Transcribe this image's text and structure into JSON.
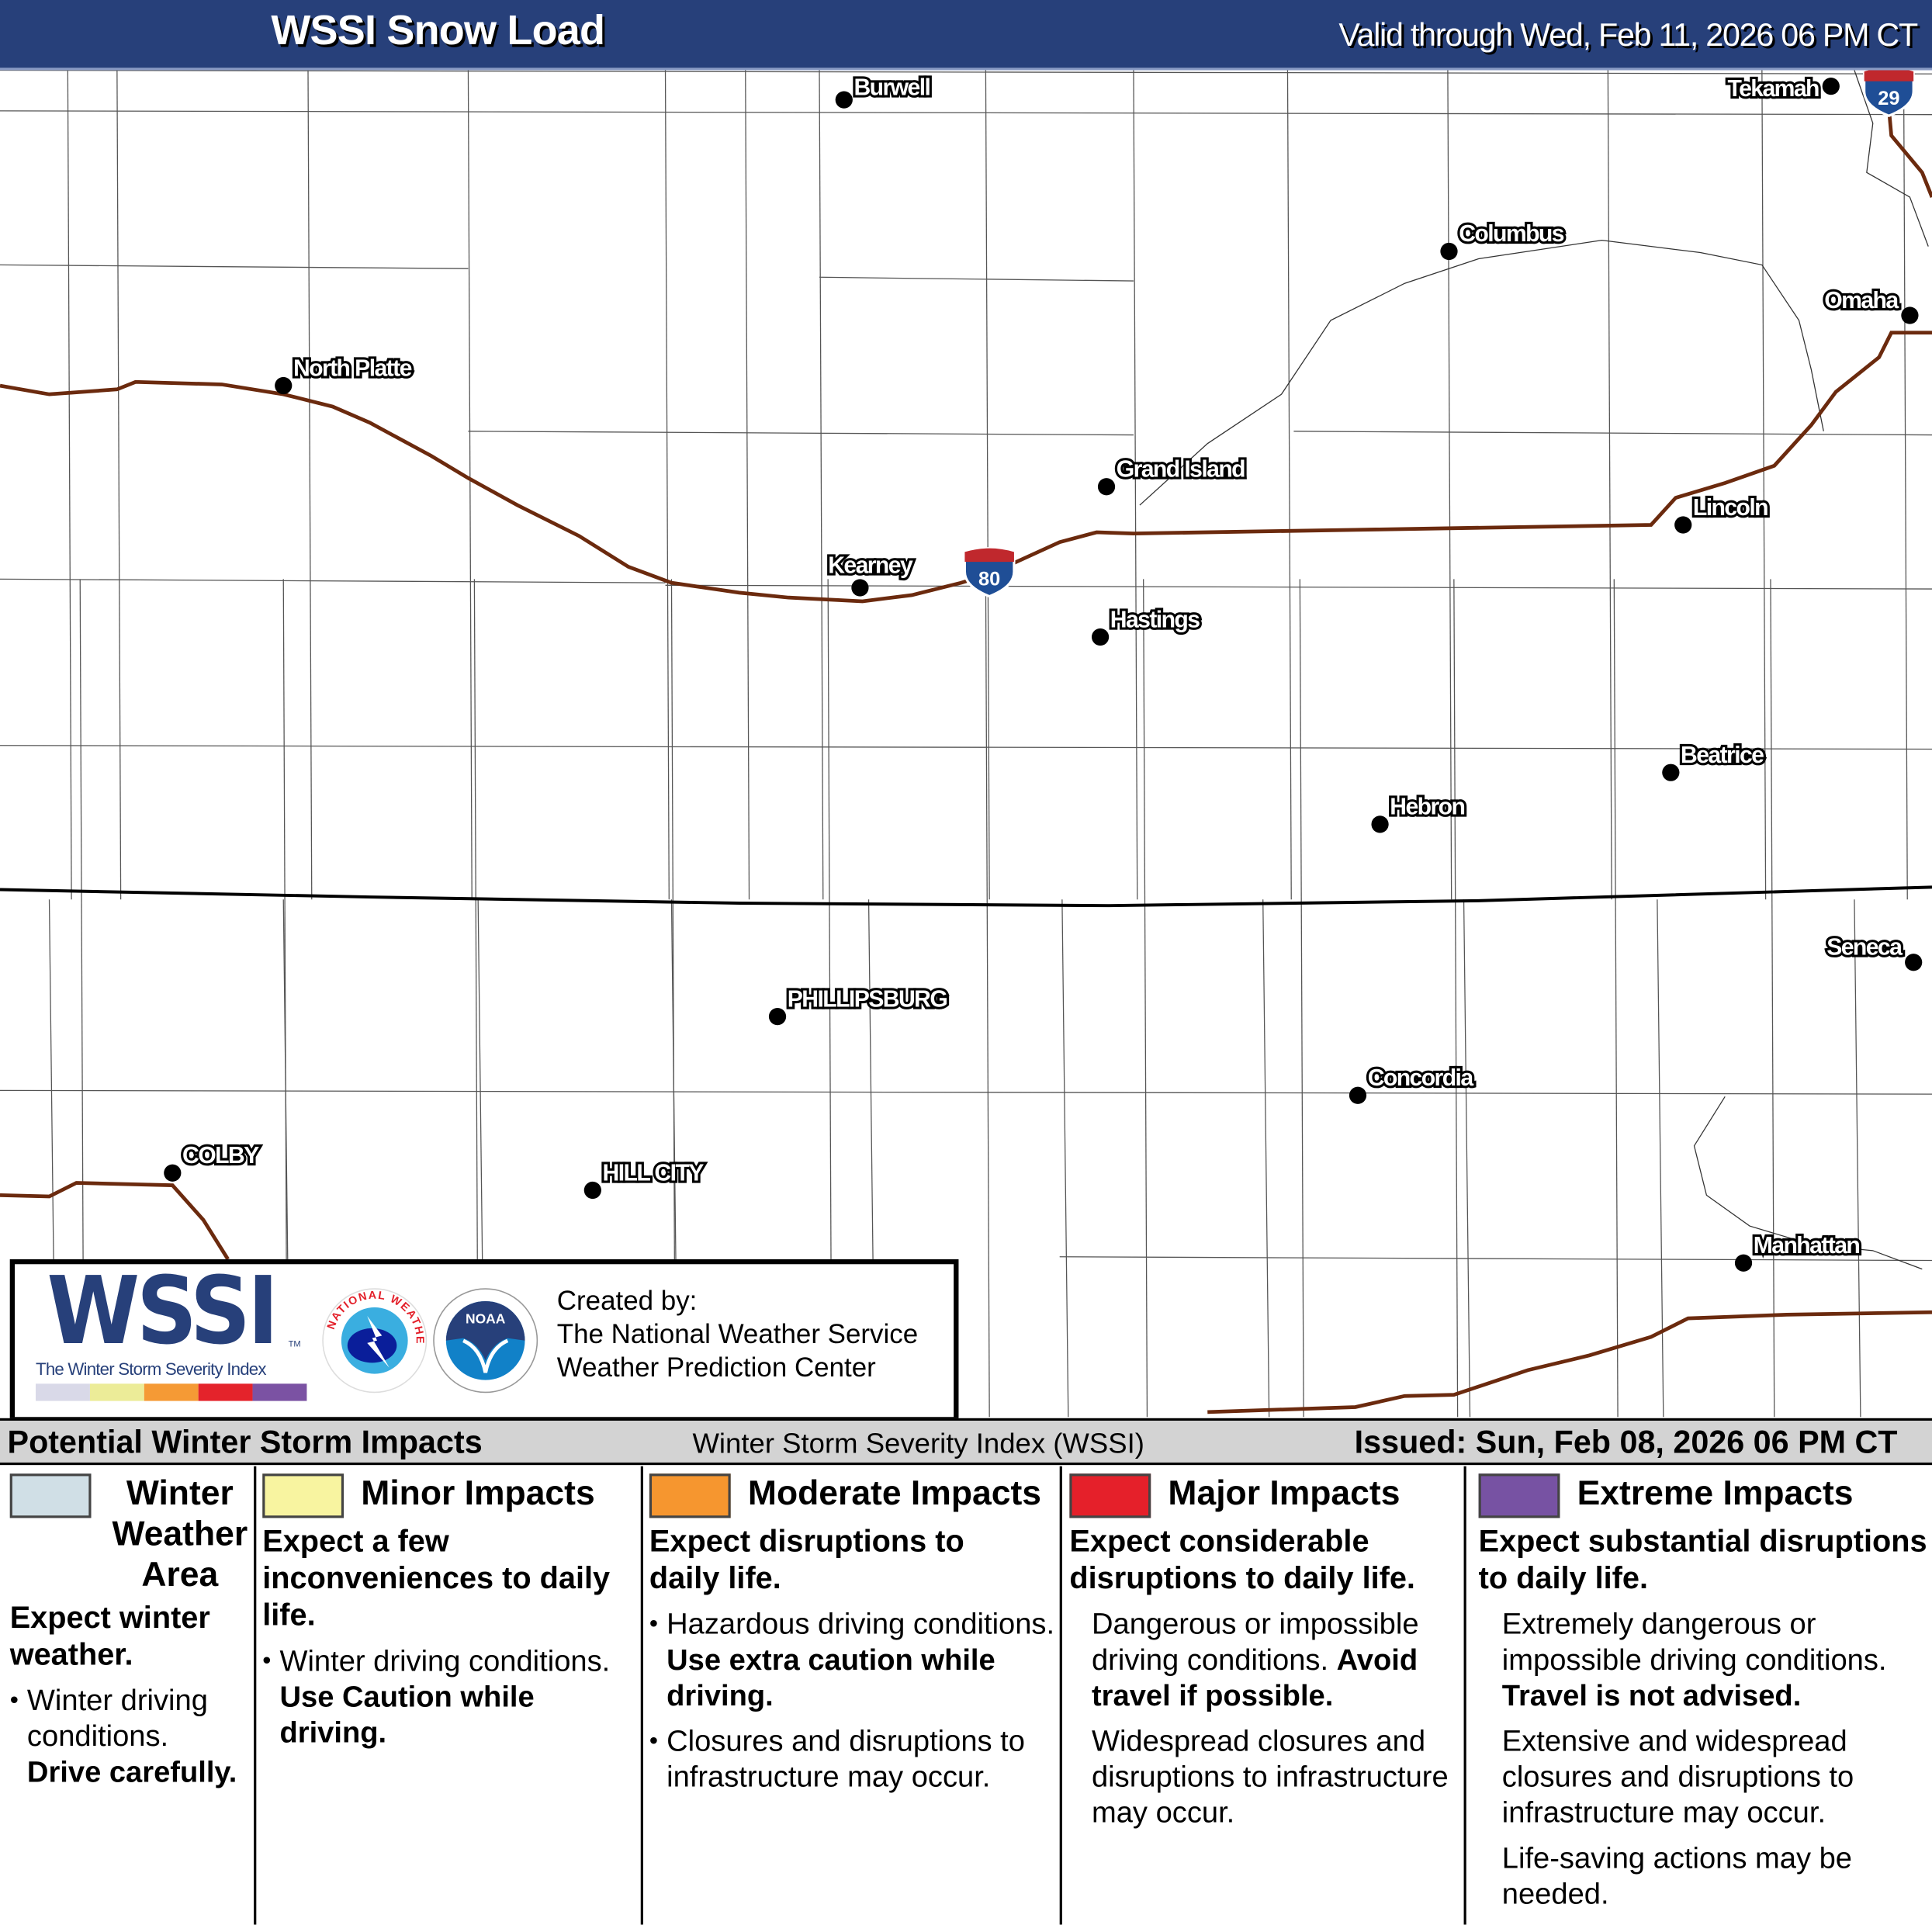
{
  "header": {
    "title": "WSSI Snow Load",
    "valid": "Valid through Wed, Feb 11, 2026 06 PM CT"
  },
  "map": {
    "cities": [
      "Burwell",
      "Tekamah",
      "Columbus",
      "Omaha",
      "North Platte",
      "Grand Island",
      "Lincoln",
      "Kearney",
      "Hastings",
      "Beatrice",
      "Hebron",
      "Seneca",
      "PHILLIPSBURG",
      "Concordia",
      "COLBY",
      "HILL CITY",
      "Manhattan"
    ],
    "shields": [
      "80",
      "29"
    ],
    "colors": {
      "interstate": "#6b2a0e",
      "shield_blue": "#1f4e96",
      "shield_red": "#c0282d"
    }
  },
  "logo": {
    "wordmark": "WSSI",
    "tm": "TM",
    "subtitle": "The Winter Storm Severity Index",
    "nws_text": "NATIONAL WEATHER SERVICE",
    "noaa_text": "NOAA",
    "created_by": "Created by:",
    "org1": "The National Weather Service",
    "org2": "Weather Prediction Center",
    "scale_colors": [
      "#d9d9e8",
      "#ecec98",
      "#f59a35",
      "#e4232b",
      "#7b52a3"
    ]
  },
  "bar": {
    "left": "Potential Winter Storm Impacts",
    "middle": "Winter Storm Severity Index (WSSI)",
    "right": "Issued: Sun, Feb 08, 2026 06 PM CT"
  },
  "legend": [
    {
      "color": "#d0dfe6",
      "title": "Winter Weather Area",
      "lead": "Expect winter weather.",
      "b1": "Winter driving conditions.",
      "b1bold": "Drive carefully."
    },
    {
      "color": "#f8f4a0",
      "title": "Minor Impacts",
      "lead": "Expect a few inconveniences to daily life.",
      "b1": "Winter driving conditions.",
      "b1bold": "Use Caution while driving."
    },
    {
      "color": "#f6962f",
      "title": "Moderate Impacts",
      "lead": "Expect disruptions to daily life.",
      "b1": "Hazardous driving conditions.",
      "b1bold": "Use extra caution while driving.",
      "b2": "Closures and disruptions to infrastructure may occur."
    },
    {
      "color": "#e5202a",
      "title": "Major Impacts",
      "lead": "Expect considerable disruptions to daily life.",
      "p1": "Dangerous or impossible driving conditions.",
      "p1bold": "Avoid travel if possible.",
      "p2": "Widespread closures and disruptions to infrastructure may occur."
    },
    {
      "color": "#7752a3",
      "title": "Extreme Impacts",
      "lead": "Expect substantial disruptions to daily life.",
      "p1": "Extremely dangerous or impossible driving conditions.",
      "p1bold": "Travel is not advised.",
      "p2": "Extensive and widespread closures and disruptions to infrastructure may occur.",
      "p3": "Life-saving actions may be needed."
    }
  ]
}
